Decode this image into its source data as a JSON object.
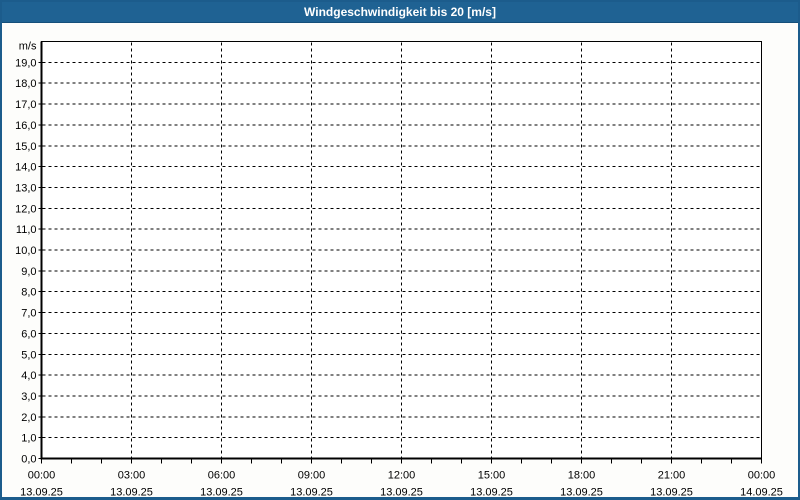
{
  "window": {
    "title": "Windgeschwindigkeit bis 20 [m/s]"
  },
  "colors": {
    "titlebar": "#1f6293",
    "border": "#1c5c8c",
    "title_text": "#ffffff",
    "grid": "#000000",
    "axis": "#000000",
    "label_text": "#000000",
    "plot_background": "#ffffff",
    "page_background": "#fdfdfb"
  },
  "chart_data": {
    "type": "line",
    "title": "Windgeschwindigkeit bis 20 [m/s]",
    "ylabel": "m/s",
    "ylim": [
      0,
      20
    ],
    "y_tick_step": 1.0,
    "y_tick_labels": [
      "0,0",
      "1,0",
      "2,0",
      "3,0",
      "4,0",
      "5,0",
      "6,0",
      "7,0",
      "8,0",
      "9,0",
      "10,0",
      "11,0",
      "12,0",
      "13,0",
      "14,0",
      "15,0",
      "16,0",
      "17,0",
      "18,0",
      "19,0"
    ],
    "x_range_hours": [
      0,
      24
    ],
    "x_major_step_hours": 3,
    "x_minor_step_hours": 1,
    "x_ticks": [
      {
        "hour": 0,
        "time": "00:00",
        "date": "13.09.25"
      },
      {
        "hour": 3,
        "time": "03:00",
        "date": "13.09.25"
      },
      {
        "hour": 6,
        "time": "06:00",
        "date": "13.09.25"
      },
      {
        "hour": 9,
        "time": "09:00",
        "date": "13.09.25"
      },
      {
        "hour": 12,
        "time": "12:00",
        "date": "13.09.25"
      },
      {
        "hour": 15,
        "time": "15:00",
        "date": "13.09.25"
      },
      {
        "hour": 18,
        "time": "18:00",
        "date": "13.09.25"
      },
      {
        "hour": 21,
        "time": "21:00",
        "date": "13.09.25"
      },
      {
        "hour": 24,
        "time": "00:00",
        "date": "14.09.25"
      }
    ],
    "grid": "dashed",
    "legend": null,
    "series": []
  }
}
